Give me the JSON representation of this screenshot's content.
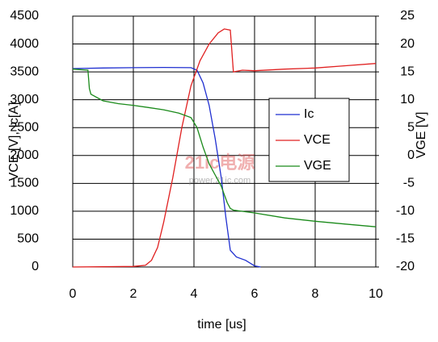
{
  "chart_data": {
    "type": "line",
    "xlabel": "time [us]",
    "ylabel": "VCE [V], Ic[A]",
    "y2label": "VGE [V]",
    "xlim": [
      0,
      10
    ],
    "xticks": [
      0,
      2,
      4,
      6,
      8,
      10
    ],
    "ylim": [
      0,
      4500
    ],
    "yticks": [
      0,
      500,
      1000,
      1500,
      2000,
      2500,
      3000,
      3500,
      4000,
      4500
    ],
    "y2lim": [
      -20,
      25
    ],
    "y2ticks": [
      -20,
      -15,
      -10,
      -5,
      0,
      5,
      10,
      15,
      20,
      25
    ],
    "grid": true,
    "legend": "right",
    "watermark": [
      "21ic电源",
      "power.21ic.com"
    ],
    "series": [
      {
        "name": "Ic",
        "color": "#1f2fd0",
        "x": [
          0,
          1,
          2,
          3,
          3.9,
          4.1,
          4.3,
          4.5,
          4.7,
          4.9,
          5.05,
          5.2,
          5.4,
          5.7,
          6.0,
          6.2
        ],
        "values": [
          3560,
          3570,
          3575,
          3580,
          3575,
          3530,
          3300,
          2900,
          2300,
          1600,
          900,
          300,
          180,
          120,
          20,
          0
        ]
      },
      {
        "name": "VCE",
        "color": "#e02020",
        "x": [
          0,
          1,
          2,
          2.4,
          2.6,
          2.8,
          3.0,
          3.3,
          3.6,
          3.9,
          4.2,
          4.5,
          4.8,
          5.0,
          5.2,
          5.3,
          5.6,
          6,
          7,
          8,
          9,
          10
        ],
        "values": [
          0,
          5,
          10,
          30,
          120,
          350,
          800,
          1600,
          2500,
          3250,
          3700,
          4000,
          4200,
          4270,
          4250,
          3500,
          3530,
          3520,
          3550,
          3570,
          3610,
          3650
        ]
      },
      {
        "name": "VGE",
        "color": "#1a8a1a",
        "axis": "y2",
        "x": [
          0,
          0.5,
          0.55,
          0.6,
          1,
          1.5,
          2,
          2.5,
          3,
          3.5,
          3.9,
          4.1,
          4.3,
          4.5,
          4.7,
          4.9,
          5.0,
          5.1,
          5.2,
          5.3,
          6,
          7,
          8,
          9,
          10
        ],
        "values": [
          15.5,
          15.3,
          12,
          11,
          9.8,
          9.3,
          9,
          8.6,
          8.2,
          7.6,
          6.8,
          5,
          1.5,
          -1.5,
          -3.5,
          -5.5,
          -7,
          -8.5,
          -9.5,
          -9.8,
          -10.3,
          -11.2,
          -11.8,
          -12.3,
          -12.8
        ]
      }
    ]
  }
}
